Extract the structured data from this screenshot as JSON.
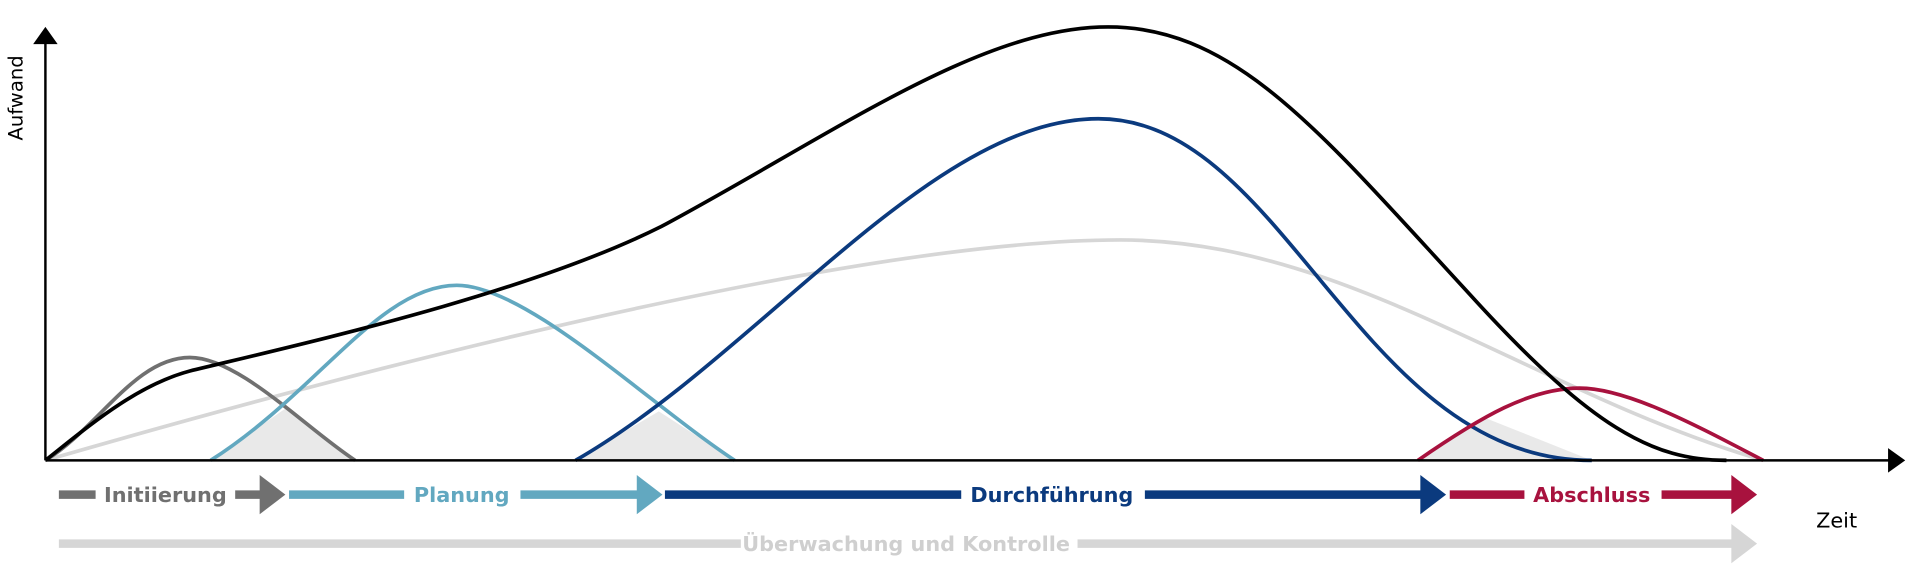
{
  "axes": {
    "y_label": "Aufwand",
    "x_label": "Zeit"
  },
  "phases": [
    {
      "label": "Initiierung"
    },
    {
      "label": "Planung"
    },
    {
      "label": "Durchführung"
    },
    {
      "label": "Abschluss"
    }
  ],
  "monitoring": {
    "label": "Überwachung und Kontrolle"
  }
}
